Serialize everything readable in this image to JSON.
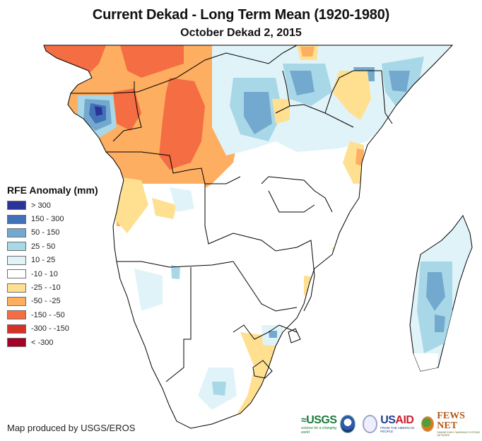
{
  "header": {
    "title": "Current Dekad - Long Term Mean (1920-1980)",
    "subtitle": "October Dekad 2, 2015"
  },
  "legend": {
    "title": "RFE Anomaly (mm)",
    "items": [
      {
        "label": "> 300",
        "color": "#2b3396"
      },
      {
        "label": "150 - 300",
        "color": "#4272b8"
      },
      {
        "label": "50 - 150",
        "color": "#74a9cf"
      },
      {
        "label": "25 - 50",
        "color": "#a8d8e8"
      },
      {
        "label": "10 - 25",
        "color": "#e0f3f8"
      },
      {
        "label": "-10 - 10",
        "color": "#ffffff"
      },
      {
        "label": "-25 - -10",
        "color": "#fee090"
      },
      {
        "label": "-50 - -25",
        "color": "#fdae61"
      },
      {
        "label": "-150 - -50",
        "color": "#f46d43"
      },
      {
        "label": "-300 - -150",
        "color": "#d73027"
      },
      {
        "label": "< -300",
        "color": "#a50026"
      }
    ]
  },
  "map": {
    "region": "Central and Southern Africa",
    "variable": "Rainfall Estimate (RFE) anomaly",
    "units": "mm",
    "patterns": [
      {
        "area": "Gabon / Congo / DRC west / CAR",
        "class": "-50 - -25",
        "dominant_color": "#fdae61"
      },
      {
        "area": "Central DRC",
        "class": "-150 - -50",
        "dominant_color": "#f46d43"
      },
      {
        "area": "Equatorial Guinea / north Gabon",
        "class": "150 - 300",
        "dominant_color": "#4272b8"
      },
      {
        "area": "South Sudan / Uganda / Somalia",
        "class": "25 - 150",
        "dominant_color": "#74a9cf"
      },
      {
        "area": "Kenya / Tanzania coast",
        "class": "-25 - -10",
        "dominant_color": "#fee090"
      },
      {
        "area": "Angola north",
        "class": "-50 - -10",
        "dominant_color": "#fdae61"
      },
      {
        "area": "Eastern South Africa",
        "class": "-25 - -10",
        "dominant_color": "#fee090"
      },
      {
        "area": "Madagascar",
        "class": "25 - 150",
        "dominant_color": "#74a9cf"
      },
      {
        "area": "Namibia / Botswana / Zambia / Zimbabwe",
        "class": "-10 - 10",
        "dominant_color": "#ffffff"
      }
    ]
  },
  "footer": {
    "credit": "Map produced by USGS/EROS",
    "logos": {
      "usgs": "USGS",
      "usgs_tagline": "science for a changing world",
      "usaid_us": "US",
      "usaid_aid": "AID",
      "usaid_tagline": "FROM THE AMERICAN PEOPLE",
      "fews": "FEWS NET",
      "fews_tagline": "FAMINE EARLY WARNING SYSTEMS NETWORK"
    }
  }
}
